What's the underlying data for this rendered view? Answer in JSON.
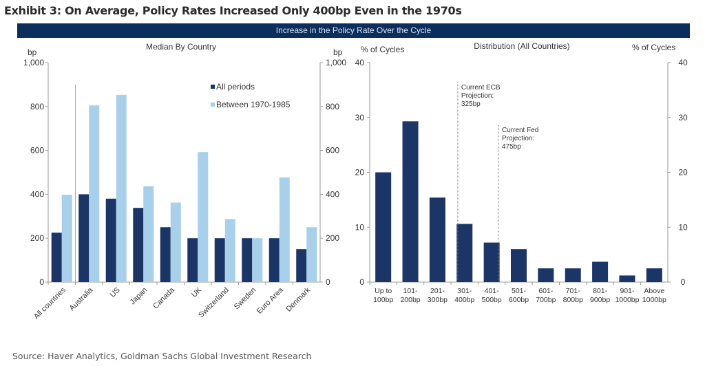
{
  "title": "Exhibit 3: On Average, Policy Rates Increased Only 400bp Even in the 1970s",
  "banner": "Increase in the Policy Rate Over the Cycle",
  "source": "Source: Haver Analytics, Goldman Sachs Global Investment Research",
  "colors": {
    "dark": "#1b3566",
    "light": "#a8d0ea",
    "banner": "#0b2e5c"
  },
  "chart_data": [
    {
      "type": "bar",
      "title": "Median By Country",
      "ylabel": "bp",
      "ylabel_right": "bp",
      "ylim": [
        0,
        1000
      ],
      "yticks": [
        0,
        200,
        400,
        600,
        800,
        1000
      ],
      "ytick_labels": [
        "0",
        "200",
        "400",
        "600",
        "800",
        "1,000"
      ],
      "categories": [
        "All countries",
        "Australia",
        "US",
        "Japan",
        "Canada",
        "UK",
        "Switzerland",
        "Sweden",
        "Euro Area",
        "Denmark"
      ],
      "series": [
        {
          "name": "All periods",
          "values": [
            225,
            400,
            380,
            338,
            250,
            200,
            200,
            200,
            200,
            150
          ]
        },
        {
          "name": "Between 1970-1985",
          "values": [
            398,
            805,
            853,
            437,
            362,
            592,
            287,
            200,
            477,
            250
          ]
        }
      ],
      "legend": "top-right",
      "separator_after": "All countries"
    },
    {
      "type": "bar",
      "title": "Distribution (All Countries)",
      "ylabel": "% of Cycles",
      "ylabel_right": "% of Cycles",
      "ylim": [
        0,
        40
      ],
      "yticks": [
        0,
        10,
        20,
        30,
        40
      ],
      "categories": [
        [
          "Up to",
          "100bp"
        ],
        [
          "101-",
          "200bp"
        ],
        [
          "201-",
          "300bp"
        ],
        [
          "301-",
          "400bp"
        ],
        [
          "401-",
          "500bp"
        ],
        [
          "501-",
          "600bp"
        ],
        [
          "601-",
          "700bp"
        ],
        [
          "701-",
          "800bp"
        ],
        [
          "801-",
          "900bp"
        ],
        [
          "901-",
          "1000bp"
        ],
        [
          "Above",
          "1000bp"
        ]
      ],
      "values": [
        20.0,
        29.3,
        15.4,
        10.6,
        7.2,
        6.0,
        2.5,
        2.5,
        3.7,
        1.2,
        2.5
      ],
      "annotations": [
        {
          "text": [
            "Current ECB",
            "Projection:",
            "325bp"
          ],
          "at_bp": 325
        },
        {
          "text": [
            "Current Fed",
            "Projection:",
            "475bp"
          ],
          "at_bp": 475
        }
      ]
    }
  ]
}
